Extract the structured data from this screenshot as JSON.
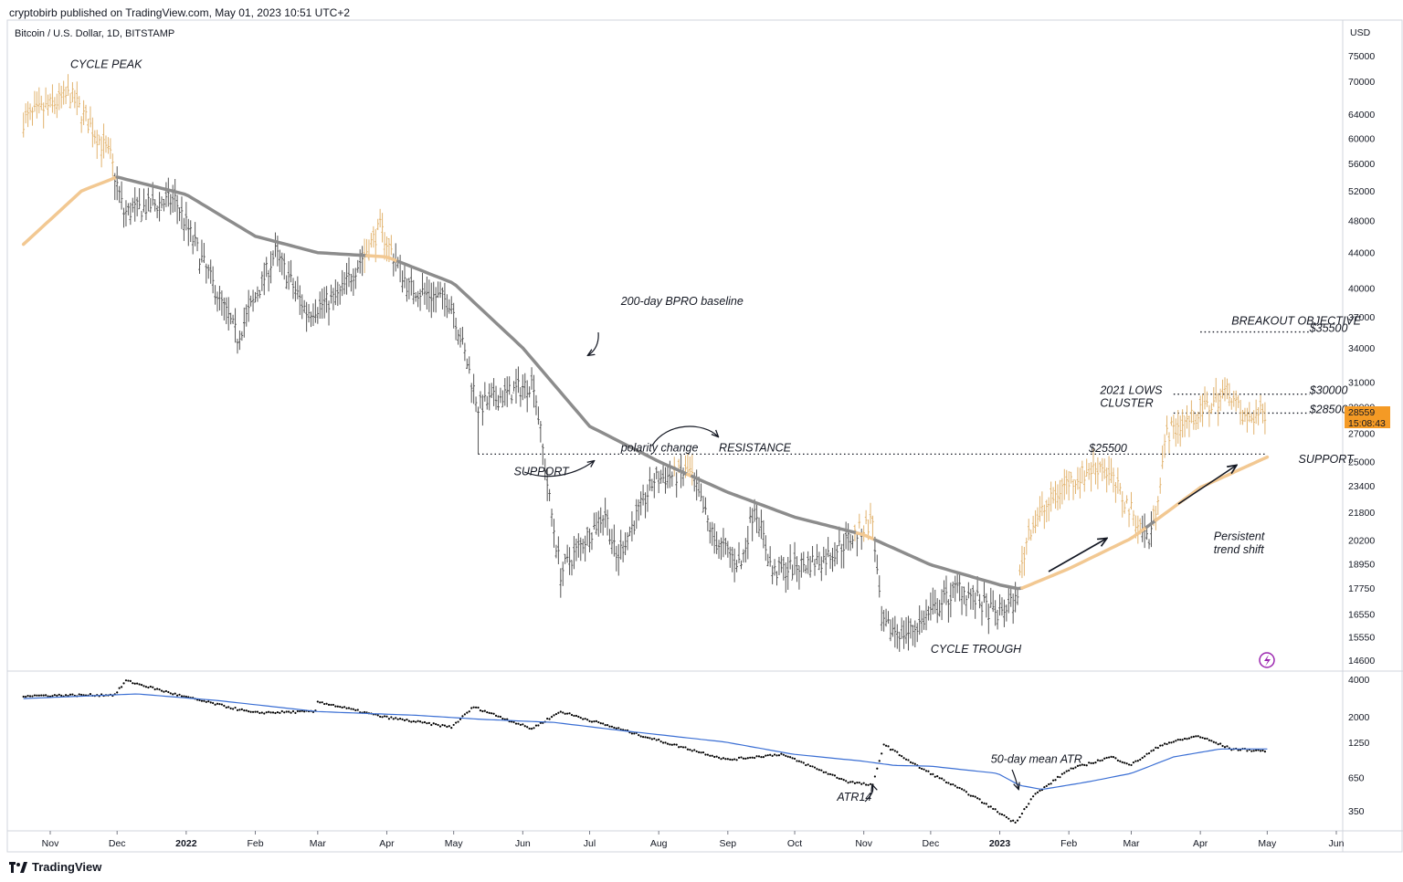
{
  "header": {
    "published": "cryptobirb published on TradingView.com, May 01, 2023 10:51 UTC+2",
    "symbol": "Bitcoin / U.S. Dollar, 1D, BITSTAMP"
  },
  "brand": {
    "name": "TradingView",
    "icon": "tradingview-logo-icon"
  },
  "colors": {
    "price_bars_bull_regime": "#e2b36e",
    "price_bars_bear_regime": "#555555",
    "baseline_200d_gray": "#8c8c8c",
    "baseline_200d_peach": "#f2c892",
    "atr_mean_line": "#3b6fd4",
    "atr_dots": "#000000",
    "price_badge": "#f49a25"
  },
  "chart_data": [
    {
      "type": "line",
      "title": "",
      "currency_label": "USD",
      "y_scale": "log",
      "ylim": [
        14000,
        80000
      ],
      "y_ticks": [
        75000,
        70000,
        64000,
        60000,
        56000,
        52000,
        48000,
        44000,
        40000,
        37000,
        34000,
        31000,
        29000,
        27000,
        25000,
        23400,
        21800,
        20200,
        18950,
        17750,
        16550,
        15550,
        14600
      ],
      "x_ticks": [
        {
          "label": "Nov",
          "date": "2021-11-01",
          "bold": false
        },
        {
          "label": "Dec",
          "date": "2021-12-01",
          "bold": false
        },
        {
          "label": "2022",
          "date": "2022-01-01",
          "bold": true
        },
        {
          "label": "Feb",
          "date": "2022-02-01",
          "bold": false
        },
        {
          "label": "Mar",
          "date": "2022-03-01",
          "bold": false
        },
        {
          "label": "Apr",
          "date": "2022-04-01",
          "bold": false
        },
        {
          "label": "May",
          "date": "2022-05-01",
          "bold": false
        },
        {
          "label": "Jun",
          "date": "2022-06-01",
          "bold": false
        },
        {
          "label": "Jul",
          "date": "2022-07-01",
          "bold": false
        },
        {
          "label": "Aug",
          "date": "2022-08-01",
          "bold": false
        },
        {
          "label": "Sep",
          "date": "2022-09-01",
          "bold": false
        },
        {
          "label": "Oct",
          "date": "2022-10-01",
          "bold": false
        },
        {
          "label": "Nov",
          "date": "2022-11-01",
          "bold": false
        },
        {
          "label": "Dec",
          "date": "2022-12-01",
          "bold": false
        },
        {
          "label": "2023",
          "date": "2023-01-01",
          "bold": true
        },
        {
          "label": "Feb",
          "date": "2023-02-01",
          "bold": false
        },
        {
          "label": "Mar",
          "date": "2023-03-01",
          "bold": false
        },
        {
          "label": "Apr",
          "date": "2023-04-01",
          "bold": false
        },
        {
          "label": "May",
          "date": "2023-05-01",
          "bold": false
        },
        {
          "label": "Jun",
          "date": "2023-06-01",
          "bold": false
        }
      ],
      "price_path": [
        [
          "2021-10-20",
          63000
        ],
        [
          "2021-11-10",
          67500
        ],
        [
          "2021-11-28",
          57000
        ],
        [
          "2021-12-04",
          49000
        ],
        [
          "2021-12-27",
          50800
        ],
        [
          "2022-01-10",
          42000
        ],
        [
          "2022-01-24",
          35000
        ],
        [
          "2022-02-10",
          44000
        ],
        [
          "2022-02-24",
          37500
        ],
        [
          "2022-03-10",
          39000
        ],
        [
          "2022-03-29",
          47000
        ],
        [
          "2022-04-11",
          40000
        ],
        [
          "2022-04-30",
          38500
        ],
        [
          "2022-05-12",
          29000
        ],
        [
          "2022-06-06",
          31000
        ],
        [
          "2022-06-13",
          22500
        ],
        [
          "2022-06-18",
          18500
        ],
        [
          "2022-07-08",
          21800
        ],
        [
          "2022-07-13",
          19200
        ],
        [
          "2022-07-30",
          23800
        ],
        [
          "2022-08-15",
          24300
        ],
        [
          "2022-08-26",
          20200
        ],
        [
          "2022-09-07",
          18900
        ],
        [
          "2022-09-13",
          22300
        ],
        [
          "2022-09-21",
          18500
        ],
        [
          "2022-10-14",
          19200
        ],
        [
          "2022-11-05",
          21300
        ],
        [
          "2022-11-09",
          16000
        ],
        [
          "2022-11-21",
          15700
        ],
        [
          "2022-12-14",
          17800
        ],
        [
          "2022-12-30",
          16500
        ],
        [
          "2023-01-08",
          17100
        ],
        [
          "2023-01-14",
          20800
        ],
        [
          "2023-01-30",
          23500
        ],
        [
          "2023-02-16",
          24800
        ],
        [
          "2023-03-09",
          20200
        ],
        [
          "2023-03-12",
          22100
        ],
        [
          "2023-03-17",
          27000
        ],
        [
          "2023-04-01",
          28500
        ],
        [
          "2023-04-14",
          30400
        ],
        [
          "2023-04-20",
          28000
        ],
        [
          "2023-04-26",
          28300
        ],
        [
          "2023-04-30",
          28559
        ]
      ],
      "baseline_200d": {
        "name": "200-day BPRO baseline",
        "points": [
          [
            "2021-10-20",
            45000
          ],
          [
            "2021-11-15",
            52000
          ],
          [
            "2021-12-01",
            54000
          ],
          [
            "2022-01-01",
            51500
          ],
          [
            "2022-02-01",
            46000
          ],
          [
            "2022-03-01",
            44000
          ],
          [
            "2022-04-01",
            43500
          ],
          [
            "2022-05-01",
            40500
          ],
          [
            "2022-06-01",
            34000
          ],
          [
            "2022-07-01",
            27500
          ],
          [
            "2022-08-01",
            25000
          ],
          [
            "2022-09-01",
            23000
          ],
          [
            "2022-10-01",
            21500
          ],
          [
            "2022-11-01",
            20500
          ],
          [
            "2022-12-01",
            18900
          ],
          [
            "2023-01-01",
            17900
          ],
          [
            "2023-01-10",
            17700
          ],
          [
            "2023-02-01",
            18700
          ],
          [
            "2023-03-01",
            20300
          ],
          [
            "2023-04-01",
            23300
          ],
          [
            "2023-05-01",
            25300
          ]
        ]
      },
      "annotations": [
        {
          "text": "CYCLE PEAK",
          "date": "2021-11-10",
          "price": 72500
        },
        {
          "text": "200-day BPRO baseline",
          "date": "2022-07-15",
          "price": 38200
        },
        {
          "text": "polarity change",
          "date": "2022-07-15",
          "price": 25700
        },
        {
          "text": "RESISTANCE",
          "date": "2022-08-28",
          "price": 25700
        },
        {
          "text": "SUPPORT",
          "date": "2022-05-28",
          "price": 24100
        },
        {
          "text": "$25500",
          "date": "2023-02-10",
          "price": 25650
        },
        {
          "text": "SUPPORT",
          "date": "2023-05-15",
          "price": 24900
        },
        {
          "text": "CYCLE TROUGH",
          "date": "2022-12-01",
          "price": 14900
        },
        {
          "text": "2021 LOWS",
          "date": "2023-02-15",
          "price": 30000
        },
        {
          "text": "CLUSTER",
          "date": "2023-02-15",
          "price": 29000
        },
        {
          "text": "$30000",
          "date": "2023-05-20",
          "price": 30000
        },
        {
          "text": "$28500",
          "date": "2023-05-20",
          "price": 28500
        },
        {
          "text": "BREAKOUT OBJECTIVE",
          "date": "2023-04-15",
          "price": 36200
        },
        {
          "text": "$35500",
          "date": "2023-05-20",
          "price": 35500
        },
        {
          "text": "Persistent",
          "date": "2023-04-07",
          "price": 20200
        },
        {
          "text": "trend shift",
          "date": "2023-04-07",
          "price": 19500
        }
      ],
      "levels": [
        {
          "price": 25500,
          "from": "2022-05-12",
          "to": "2023-05-01"
        },
        {
          "price": 30000,
          "from": "2023-03-20",
          "to": "2023-05-20"
        },
        {
          "price": 28500,
          "from": "2023-03-20",
          "to": "2023-05-20"
        },
        {
          "price": 35500,
          "from": "2023-04-01",
          "to": "2023-05-20"
        }
      ],
      "last_price": {
        "value": "28559",
        "countdown": "15:08:43"
      }
    },
    {
      "type": "scatter",
      "title": "",
      "y_scale": "log",
      "ylim": [
        250,
        4400
      ],
      "y_ticks": [
        4000,
        2000,
        1250,
        650,
        350
      ],
      "atr14_path": [
        [
          "2021-10-20",
          2950
        ],
        [
          "2021-11-30",
          3000
        ],
        [
          "2021-12-05",
          3900
        ],
        [
          "2021-12-31",
          2900
        ],
        [
          "2022-01-31",
          2150
        ],
        [
          "2022-02-28",
          2200
        ],
        [
          "2022-03-01",
          2650
        ],
        [
          "2022-03-30",
          2000
        ],
        [
          "2022-04-30",
          1650
        ],
        [
          "2022-05-10",
          2400
        ],
        [
          "2022-06-05",
          1600
        ],
        [
          "2022-06-18",
          2200
        ],
        [
          "2022-07-31",
          1300
        ],
        [
          "2022-09-01",
          900
        ],
        [
          "2022-09-25",
          1000
        ],
        [
          "2022-10-25",
          600
        ],
        [
          "2022-11-05",
          560
        ],
        [
          "2022-11-10",
          1200
        ],
        [
          "2022-11-25",
          800
        ],
        [
          "2022-12-20",
          460
        ],
        [
          "2023-01-08",
          280
        ],
        [
          "2023-01-16",
          460
        ],
        [
          "2023-02-01",
          750
        ],
        [
          "2023-02-20",
          950
        ],
        [
          "2023-03-01",
          820
        ],
        [
          "2023-03-15",
          1200
        ],
        [
          "2023-03-31",
          1400
        ],
        [
          "2023-04-15",
          1100
        ],
        [
          "2023-04-30",
          1060
        ]
      ],
      "atr_mean_50d": {
        "name": "50-day mean ATR",
        "points": [
          [
            "2021-10-20",
            2800
          ],
          [
            "2021-12-10",
            3050
          ],
          [
            "2022-01-15",
            2700
          ],
          [
            "2022-03-01",
            2200
          ],
          [
            "2022-04-15",
            2050
          ],
          [
            "2022-05-15",
            1900
          ],
          [
            "2022-06-15",
            1800
          ],
          [
            "2022-07-15",
            1550
          ],
          [
            "2022-08-31",
            1250
          ],
          [
            "2022-09-30",
            1000
          ],
          [
            "2022-10-31",
            880
          ],
          [
            "2022-11-15",
            810
          ],
          [
            "2022-12-01",
            800
          ],
          [
            "2022-12-31",
            700
          ],
          [
            "2023-01-10",
            560
          ],
          [
            "2023-01-20",
            520
          ],
          [
            "2023-02-10",
            600
          ],
          [
            "2023-03-01",
            700
          ],
          [
            "2023-03-20",
            950
          ],
          [
            "2023-04-10",
            1100
          ],
          [
            "2023-05-01",
            1100
          ]
        ]
      },
      "annotations": [
        {
          "text": "50-day mean ATR",
          "date": "2022-12-28",
          "price": 850
        },
        {
          "text": "ATR14",
          "date": "2022-10-20",
          "price": 420
        }
      ]
    }
  ]
}
